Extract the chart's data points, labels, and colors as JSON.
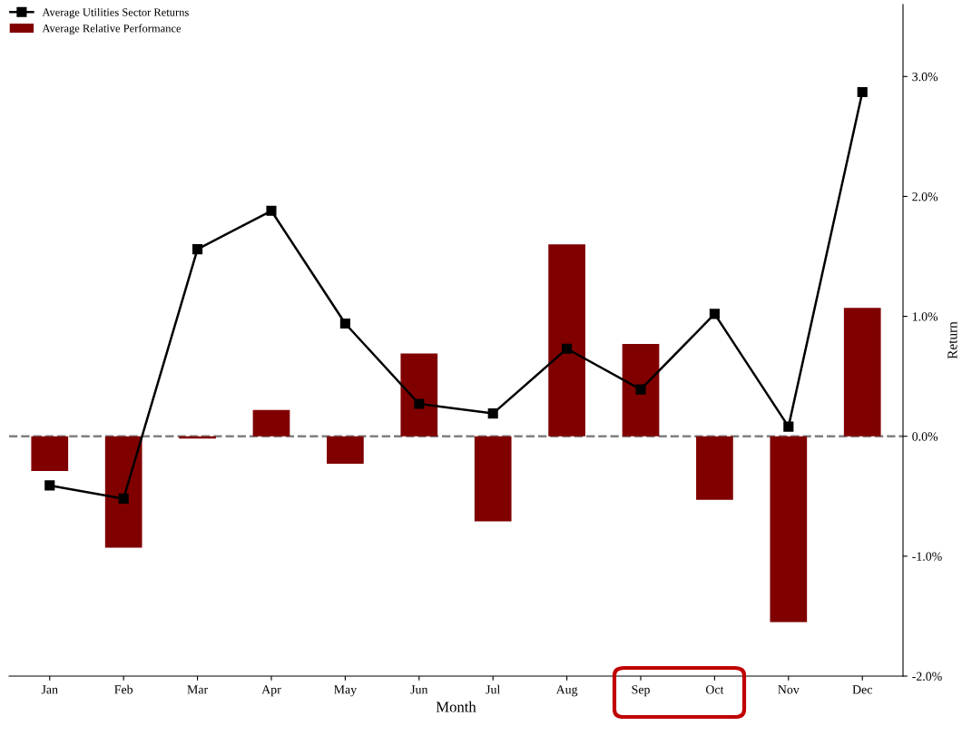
{
  "chart_data": {
    "type": "bar",
    "xlabel": "Month",
    "ylabel": "Return",
    "categories": [
      "Jan",
      "Feb",
      "Mar",
      "Apr",
      "May",
      "Jun",
      "Jul",
      "Aug",
      "Sep",
      "Oct",
      "Nov",
      "Dec"
    ],
    "series": [
      {
        "name": "Average Utilities Sector Returns",
        "type": "line",
        "color": "#000000",
        "marker": "square",
        "line_style": "solid",
        "values": [
          -0.41,
          -0.52,
          1.56,
          1.88,
          0.94,
          0.27,
          0.19,
          0.73,
          0.39,
          1.02,
          0.08,
          2.87
        ]
      },
      {
        "name": "Average Relative Performance",
        "color": "#800000",
        "values": [
          -0.29,
          -0.93,
          -0.02,
          0.22,
          -0.23,
          0.69,
          -0.71,
          1.6,
          0.77,
          -0.53,
          -1.55,
          1.07
        ]
      }
    ],
    "ylim": [
      -2.0,
      3.6
    ],
    "yticks": [
      {
        "value": -2,
        "label": "-2.0%"
      },
      {
        "value": -1,
        "label": "-1.0%"
      },
      {
        "value": 0,
        "label": "0.0%"
      },
      {
        "value": 1,
        "label": "1.0%"
      },
      {
        "value": 2,
        "label": "2.0%"
      },
      {
        "value": 3,
        "label": "3.0%"
      }
    ],
    "ref_lines": [
      {
        "axis": "y",
        "value": 0,
        "color": "#808080",
        "line_style": "dashed"
      }
    ],
    "grid": false,
    "legend": "top left"
  }
}
